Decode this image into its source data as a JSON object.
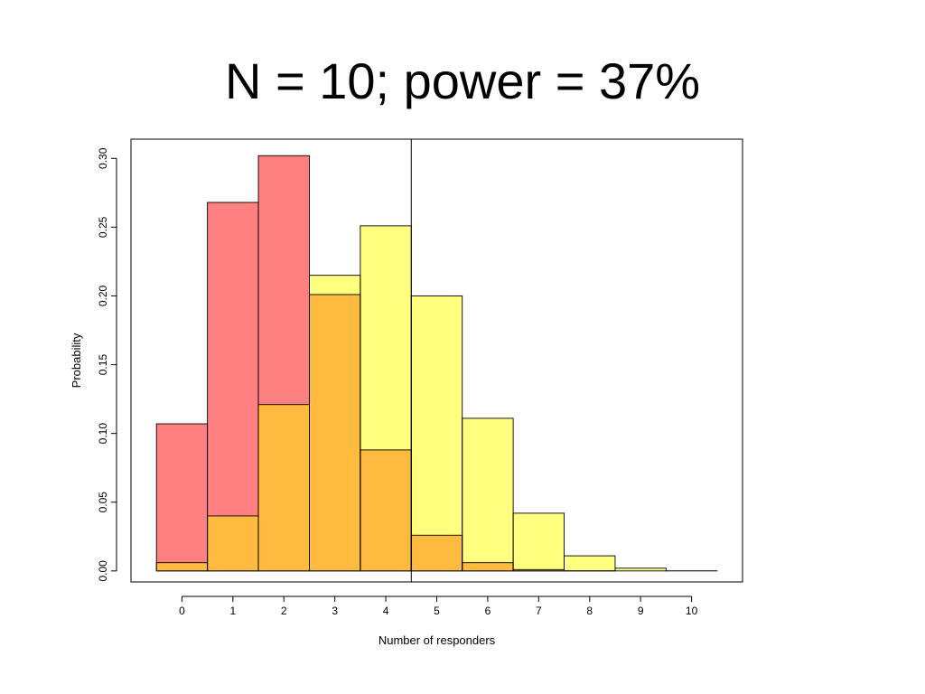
{
  "title": "N = 10; power = 37%",
  "chart_data": {
    "type": "histogram",
    "xlabel": "Number of responders",
    "ylabel": "Probability",
    "x": [
      0,
      1,
      2,
      3,
      4,
      5,
      6,
      7,
      8,
      9,
      10
    ],
    "x_ticks": [
      "0",
      "1",
      "2",
      "3",
      "4",
      "5",
      "6",
      "7",
      "8",
      "9",
      "10"
    ],
    "y_ticks": [
      "0.00",
      "0.05",
      "0.10",
      "0.15",
      "0.20",
      "0.25",
      "0.30"
    ],
    "xlim": [
      -1,
      11
    ],
    "ylim": [
      -0.008,
      0.314
    ],
    "threshold_x": 4.5,
    "series": [
      {
        "color": "#ff8080",
        "values": [
          0.107,
          0.268,
          0.302,
          0.201,
          0.088,
          0.026,
          0.006,
          0.001,
          0.0001,
          0.0,
          0.0
        ]
      },
      {
        "color": "#ffff80",
        "values": [
          0.006,
          0.04,
          0.121,
          0.215,
          0.251,
          0.2,
          0.111,
          0.042,
          0.011,
          0.002,
          0.0001
        ]
      }
    ],
    "overlap_color": "#ffbb40",
    "legend": "none",
    "grid": false
  }
}
